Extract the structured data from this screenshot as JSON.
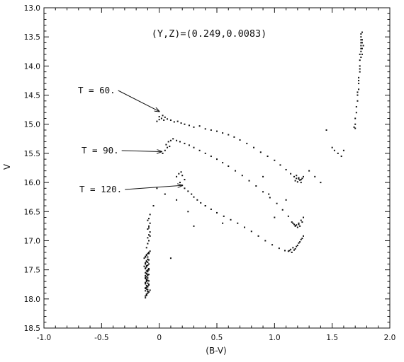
{
  "chart_data": {
    "type": "scatter",
    "title": "(Y,Z)=(0.249,0.0083)",
    "xlabel": "(B-V)",
    "ylabel": "V",
    "xlim": [
      -1.0,
      2.0
    ],
    "ylim": [
      18.5,
      13.0
    ],
    "y_inverted": true,
    "grid": false,
    "xticks": [
      "-1.0",
      "-0.5",
      "0",
      "0.5",
      "1.0",
      "1.5",
      "2.0"
    ],
    "yticks": [
      "13.0",
      "13.5",
      "14.0",
      "14.5",
      "15.0",
      "15.5",
      "16.0",
      "16.5",
      "17.0",
      "17.5",
      "18.0",
      "18.5"
    ],
    "annotations": [
      {
        "text": "T = 60.",
        "target": [
          0.0,
          14.78
        ]
      },
      {
        "text": "T = 90.",
        "target": [
          0.02,
          15.47
        ]
      },
      {
        "text": "T = 120.",
        "target": [
          0.2,
          16.05
        ]
      }
    ],
    "series": [
      {
        "x": [
          -0.12,
          -0.11,
          -0.1,
          -0.09,
          -0.08,
          -0.12,
          -0.11,
          -0.1,
          -0.09,
          -0.12,
          -0.11,
          -0.1,
          -0.12,
          -0.11,
          -0.1,
          -0.09,
          -0.12,
          -0.11,
          -0.1,
          -0.12,
          -0.11,
          -0.1,
          -0.09,
          -0.12,
          -0.11,
          -0.1,
          -0.13,
          -0.12,
          -0.11,
          -0.1,
          -0.09,
          -0.12,
          -0.11,
          -0.1,
          -0.12,
          -0.11,
          -0.1,
          -0.09,
          -0.12,
          -0.11,
          -0.1,
          -0.12,
          -0.11,
          -0.1,
          -0.09,
          -0.13,
          -0.12,
          -0.11,
          -0.1,
          -0.12,
          -0.11,
          -0.1,
          -0.12,
          -0.11,
          -0.1,
          -0.09,
          -0.12,
          -0.11,
          -0.1,
          -0.12,
          -0.11,
          -0.1,
          -0.09,
          -0.12,
          -0.11,
          -0.1,
          -0.12,
          -0.11,
          -0.1,
          -0.09,
          -0.11,
          -0.1,
          -0.09,
          -0.08,
          -0.11,
          -0.1,
          -0.09,
          -0.1,
          -0.09,
          -0.08,
          -0.1,
          -0.09,
          -0.08,
          -0.09,
          -0.08,
          -0.1,
          -0.09,
          -0.08
        ],
        "y": [
          17.95,
          17.92,
          17.9,
          17.88,
          17.85,
          17.82,
          17.8,
          17.78,
          17.75,
          17.72,
          17.7,
          17.68,
          17.65,
          17.62,
          17.6,
          17.58,
          17.55,
          17.52,
          17.5,
          17.48,
          17.45,
          17.42,
          17.4,
          17.38,
          17.35,
          17.32,
          17.3,
          17.28,
          17.25,
          17.22,
          17.2,
          17.98,
          17.94,
          17.9,
          17.86,
          17.83,
          17.79,
          17.76,
          17.72,
          17.68,
          17.64,
          17.6,
          17.56,
          17.52,
          17.48,
          17.44,
          17.4,
          17.36,
          17.32,
          17.28,
          17.24,
          17.87,
          17.81,
          17.77,
          17.73,
          17.69,
          17.63,
          17.57,
          17.53,
          17.47,
          17.43,
          17.37,
          17.33,
          17.27,
          17.92,
          17.84,
          17.74,
          17.66,
          17.58,
          17.5,
          17.35,
          17.28,
          17.22,
          17.18,
          17.12,
          17.05,
          17.0,
          16.95,
          16.9,
          16.85,
          16.8,
          16.75,
          16.7,
          16.62,
          16.55,
          16.65,
          16.78,
          16.92
        ]
      },
      {
        "x": [
          -0.02,
          0.0,
          0.02,
          0.04,
          0.0,
          0.03,
          0.05,
          0.07,
          0.1,
          0.13,
          0.16,
          0.19,
          0.22,
          0.26,
          0.3,
          0.35,
          0.4,
          0.45,
          0.5,
          0.55,
          0.6,
          0.65,
          0.7,
          0.76,
          0.82,
          0.88,
          0.94,
          1.0,
          1.05,
          1.1,
          1.14,
          1.17,
          1.19,
          1.21,
          1.23,
          1.25,
          1.18,
          1.2,
          1.22,
          1.24,
          1.19,
          1.21,
          1.23
        ],
        "y": [
          14.95,
          14.92,
          14.9,
          14.93,
          14.87,
          14.85,
          14.88,
          14.91,
          14.93,
          14.96,
          14.95,
          14.98,
          15.0,
          15.02,
          15.05,
          15.03,
          15.08,
          15.1,
          15.12,
          15.15,
          15.18,
          15.22,
          15.27,
          15.33,
          15.4,
          15.48,
          15.55,
          15.62,
          15.7,
          15.78,
          15.85,
          15.9,
          15.93,
          15.92,
          15.95,
          15.9,
          15.97,
          15.99,
          15.96,
          15.93,
          15.88,
          15.94,
          16.0
        ]
      },
      {
        "x": [
          0.03,
          0.05,
          0.07,
          0.09,
          0.06,
          0.08,
          0.1,
          0.12,
          0.15,
          0.18,
          0.22,
          0.26,
          0.3,
          0.35,
          0.4,
          0.45,
          0.5,
          0.55,
          0.6,
          0.66,
          0.72,
          0.78,
          0.84,
          0.9,
          0.96,
          1.02,
          1.07,
          1.12,
          1.15,
          1.17,
          1.18,
          1.16,
          1.19,
          1.21,
          1.23,
          1.25,
          1.24,
          1.22,
          1.2,
          1.18,
          1.21
        ],
        "y": [
          15.5,
          15.45,
          15.4,
          15.38,
          15.35,
          15.3,
          15.28,
          15.25,
          15.28,
          15.3,
          15.33,
          15.36,
          15.4,
          15.45,
          15.5,
          15.55,
          15.6,
          15.66,
          15.72,
          15.8,
          15.88,
          15.97,
          16.06,
          16.16,
          16.26,
          16.36,
          16.47,
          16.58,
          16.68,
          16.72,
          16.75,
          16.7,
          16.73,
          16.7,
          16.65,
          16.6,
          16.68,
          16.75,
          16.77,
          16.74,
          16.72
        ]
      },
      {
        "x": [
          0.15,
          0.17,
          0.19,
          0.2,
          0.22,
          0.18,
          0.2,
          0.22,
          0.25,
          0.28,
          0.3,
          0.33,
          0.36,
          0.4,
          0.45,
          0.5,
          0.56,
          0.62,
          0.68,
          0.74,
          0.8,
          0.86,
          0.92,
          0.98,
          1.04,
          1.09,
          1.12,
          1.14,
          1.16,
          1.15,
          1.17,
          1.19,
          1.21,
          1.23,
          1.25,
          1.18,
          1.2,
          1.22,
          1.24,
          1.13
        ],
        "y": [
          15.9,
          15.85,
          15.82,
          15.88,
          15.95,
          16.0,
          16.05,
          16.1,
          16.15,
          16.2,
          16.25,
          16.3,
          16.35,
          16.4,
          16.46,
          16.52,
          16.58,
          16.64,
          16.7,
          16.77,
          16.84,
          16.92,
          17.0,
          17.07,
          17.13,
          17.17,
          17.18,
          17.15,
          17.12,
          17.2,
          17.16,
          17.1,
          17.04,
          16.98,
          16.92,
          17.14,
          17.08,
          17.02,
          16.96,
          17.17
        ]
      },
      {
        "x": [
          -0.05,
          -0.02,
          0.05,
          0.15,
          0.25,
          0.4,
          0.55,
          0.9,
          0.95,
          1.0,
          1.1,
          1.3,
          1.35,
          1.4,
          1.45,
          1.5,
          1.52,
          1.55,
          1.58,
          1.6,
          0.1,
          0.3
        ],
        "y": [
          16.4,
          16.1,
          16.2,
          16.3,
          16.5,
          16.4,
          16.7,
          15.9,
          16.2,
          16.6,
          16.3,
          15.8,
          15.9,
          16.0,
          15.1,
          15.4,
          15.45,
          15.5,
          15.55,
          15.45,
          17.3,
          16.75
        ]
      },
      {
        "x": [
          1.69,
          1.7,
          1.7,
          1.71,
          1.71,
          1.72,
          1.72,
          1.73,
          1.73,
          1.73,
          1.74,
          1.74,
          1.74,
          1.74,
          1.75,
          1.75,
          1.75,
          1.75,
          1.75,
          1.75,
          1.75,
          1.76,
          1.76,
          1.76,
          1.76,
          1.77,
          1.7,
          1.72,
          1.74,
          1.73,
          1.75,
          1.76
        ],
        "y": [
          15.05,
          15.0,
          14.9,
          14.8,
          14.7,
          14.6,
          14.5,
          14.4,
          14.3,
          14.2,
          14.1,
          14.0,
          13.9,
          13.8,
          13.75,
          13.7,
          13.65,
          13.6,
          13.55,
          13.5,
          13.45,
          13.42,
          13.6,
          13.7,
          13.8,
          13.65,
          15.07,
          14.45,
          14.05,
          14.25,
          13.85,
          13.55
        ]
      }
    ]
  }
}
